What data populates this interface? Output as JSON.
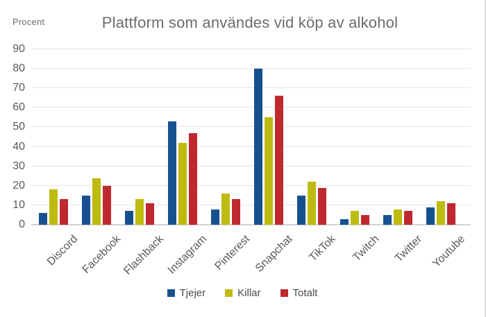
{
  "chart_data": {
    "type": "bar",
    "title": "Plattform som användes vid köp av alkohol",
    "y_axis_label": "Procent",
    "xlabel": "",
    "ylabel": "Procent",
    "ylim": [
      0,
      90
    ],
    "y_ticks": [
      0,
      10,
      20,
      30,
      40,
      50,
      60,
      70,
      80,
      90
    ],
    "grid": true,
    "legend_position": "bottom",
    "categories": [
      "Discord",
      "Facebook",
      "Flashback",
      "Instagram",
      "Pinterest",
      "Snapchat",
      "TikTok",
      "Twitch",
      "Twitter",
      "Youtube"
    ],
    "series": [
      {
        "name": "Tjejer",
        "color": "#17508F",
        "values": [
          6,
          15,
          7,
          53,
          8,
          80,
          15,
          3,
          5,
          9
        ]
      },
      {
        "name": "Killar",
        "color": "#BDBB10",
        "values": [
          18,
          24,
          13,
          42,
          16,
          55,
          22,
          7,
          8,
          12
        ]
      },
      {
        "name": "Totalt",
        "color": "#C0282F",
        "values": [
          13,
          20,
          11,
          47,
          13,
          66,
          19,
          5,
          7,
          11
        ]
      }
    ]
  }
}
